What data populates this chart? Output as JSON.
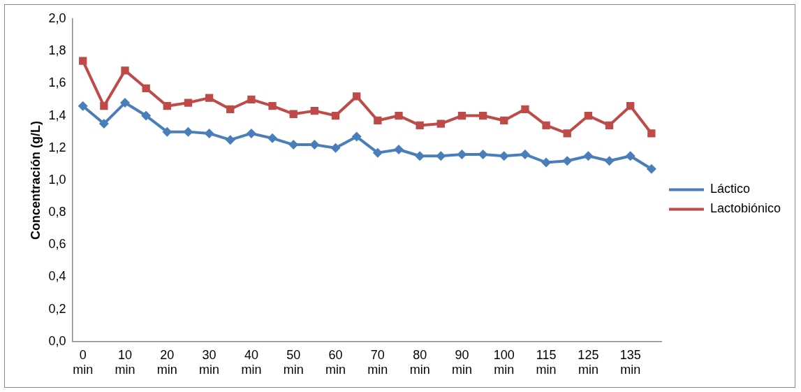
{
  "chart_data": {
    "type": "line",
    "ylabel": "Concentración (g/L)",
    "categories": [
      "0 min",
      null,
      "10 min",
      null,
      "20 min",
      null,
      "30 min",
      null,
      "40 min",
      null,
      "50 min",
      null,
      "60 min",
      null,
      "70 min",
      null,
      "80 min",
      null,
      "90 min",
      null,
      "100 min",
      null,
      "115 min",
      null,
      "125 min",
      null,
      "135 min",
      null
    ],
    "series": [
      {
        "name": "Láctico",
        "color": "#4a7ebb",
        "marker": "diamond",
        "values": [
          1.46,
          1.35,
          1.48,
          1.4,
          1.3,
          1.3,
          1.29,
          1.25,
          1.29,
          1.26,
          1.22,
          1.22,
          1.2,
          1.27,
          1.17,
          1.19,
          1.15,
          1.15,
          1.16,
          1.16,
          1.15,
          1.16,
          1.11,
          1.12,
          1.15,
          1.12,
          1.15,
          1.07
        ]
      },
      {
        "name": "Lactobiónico",
        "color": "#be4b48",
        "marker": "square",
        "values": [
          1.74,
          1.46,
          1.68,
          1.57,
          1.46,
          1.48,
          1.51,
          1.44,
          1.5,
          1.46,
          1.41,
          1.43,
          1.4,
          1.52,
          1.37,
          1.4,
          1.34,
          1.35,
          1.4,
          1.4,
          1.37,
          1.44,
          1.34,
          1.29,
          1.4,
          1.34,
          1.46,
          1.29
        ]
      }
    ],
    "ylim": [
      0,
      2
    ],
    "yticks": [
      {
        "value": 0,
        "label": "0,0"
      },
      {
        "value": 0.2,
        "label": "0,2"
      },
      {
        "value": 0.4,
        "label": "0,4"
      },
      {
        "value": 0.6,
        "label": "0,6"
      },
      {
        "value": 0.8,
        "label": "0,8"
      },
      {
        "value": 1,
        "label": "1,0"
      },
      {
        "value": 1.2,
        "label": "1,2"
      },
      {
        "value": 1.4,
        "label": "1,4"
      },
      {
        "value": 1.6,
        "label": "1,6"
      },
      {
        "value": 1.8,
        "label": "1,8"
      },
      {
        "value": 2,
        "label": "2,0"
      }
    ],
    "legend": "right",
    "line_style": "solid"
  }
}
